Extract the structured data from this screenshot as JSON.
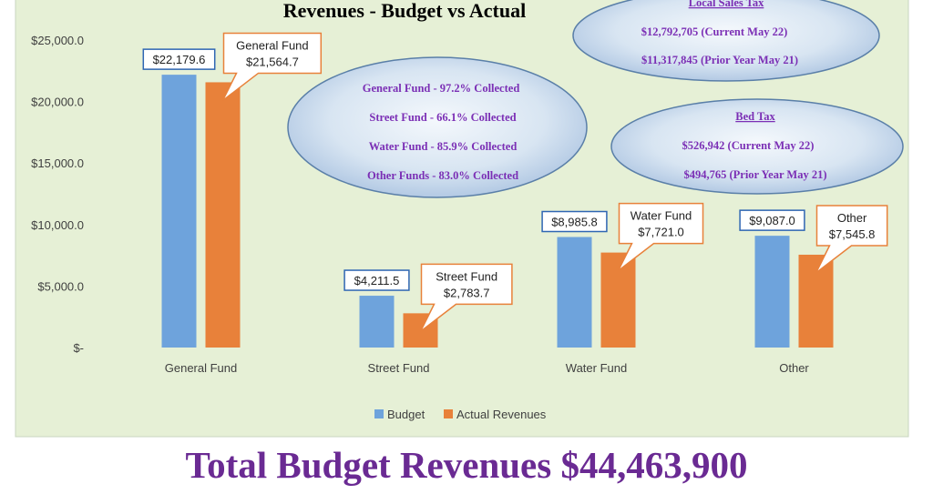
{
  "chart_data": {
    "type": "bar",
    "title": "Revenues - Budget vs Actual",
    "categories": [
      "General Fund",
      "Street Fund",
      "Water Fund",
      "Other"
    ],
    "series": [
      {
        "name": "Budget",
        "values": [
          22179.6,
          4211.5,
          8985.8,
          9087.0
        ],
        "color": "#6ea3dc"
      },
      {
        "name": "Actual Revenues",
        "values": [
          21564.7,
          2783.7,
          7721.0,
          7545.8
        ],
        "color": "#e8813a"
      }
    ],
    "ylim": [
      0,
      25000
    ],
    "yticks": [
      "$-",
      "$5,000.0",
      "$10,000.0",
      "$15,000.0",
      "$20,000.0",
      "$25,000.0"
    ],
    "budget_labels": [
      "$22,179.6",
      "$4,211.5",
      "$8,985.8",
      "$9,087.0"
    ],
    "actual_callouts": [
      {
        "name": "General Fund",
        "value": "$21,564.7"
      },
      {
        "name": "Street Fund",
        "value": "$2,783.7"
      },
      {
        "name": "Water Fund",
        "value": "$7,721.0"
      },
      {
        "name": "Other",
        "value": "$7,545.8"
      }
    ],
    "legend": {
      "placement": "bottom",
      "items": [
        "Budget",
        "Actual Revenues"
      ]
    },
    "grid": false,
    "background_color": "#e6f0d6"
  },
  "annotations": {
    "collected": [
      "General Fund - 97.2% Collected",
      "Street Fund - 66.1% Collected",
      "Water Fund - 85.9% Collected",
      "Other Funds - 83.0% Collected"
    ],
    "local_sales_tax": {
      "title": "Local Sales Tax",
      "lines": [
        "$12,792,705 (Current May 22)",
        "$11,317,845 (Prior Year May 21)"
      ]
    },
    "bed_tax": {
      "title": "Bed Tax",
      "lines": [
        "$526,942 (Current May 22)",
        "$494,765 (Prior Year May 21)"
      ]
    }
  },
  "footer": {
    "title": "Total Budget Revenues $44,463,900"
  }
}
